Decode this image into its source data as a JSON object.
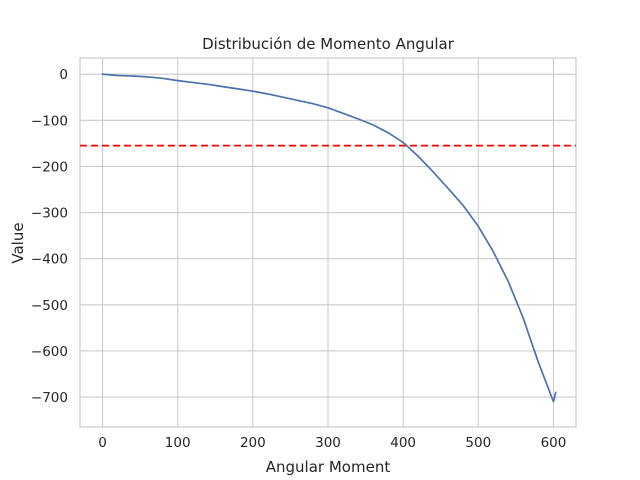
{
  "chart_data": {
    "type": "line",
    "title": "Distribución de Momento Angular",
    "xlabel": "Angular Moment",
    "ylabel": "Value",
    "xlim": [
      -30,
      630
    ],
    "ylim": [
      -765,
      35
    ],
    "xticks": [
      0,
      100,
      200,
      300,
      400,
      500,
      600
    ],
    "yticks": [
      0,
      -100,
      -200,
      -300,
      -400,
      -500,
      -600,
      -700
    ],
    "xtick_labels": [
      "0",
      "100",
      "200",
      "300",
      "400",
      "500",
      "600"
    ],
    "ytick_labels": [
      "0",
      "−100",
      "−200",
      "−300",
      "−400",
      "−500",
      "−600",
      "−700"
    ],
    "grid": true,
    "colors": {
      "series": "#4c72b0",
      "reference": "#ff0000",
      "grid": "#cccccc",
      "spine": "#cccccc",
      "text": "#262626"
    },
    "series": [
      {
        "x": [
          0,
          20,
          40,
          60,
          80,
          100,
          120,
          140,
          160,
          180,
          200,
          220,
          240,
          260,
          280,
          300,
          320,
          340,
          360,
          380,
          400,
          420,
          440,
          460,
          480,
          500,
          520,
          540,
          560,
          580,
          600,
          603
        ],
        "y": [
          0,
          -3,
          -4,
          -6,
          -9,
          -14,
          -18,
          -22,
          -27,
          -32,
          -37,
          -43,
          -50,
          -57,
          -64,
          -73,
          -85,
          -97,
          -110,
          -127,
          -148,
          -178,
          -212,
          -248,
          -285,
          -330,
          -385,
          -450,
          -530,
          -625,
          -710,
          -690
        ]
      }
    ],
    "reference_line": {
      "orientation": "horizontal",
      "y": -155,
      "style": "dashed"
    }
  }
}
